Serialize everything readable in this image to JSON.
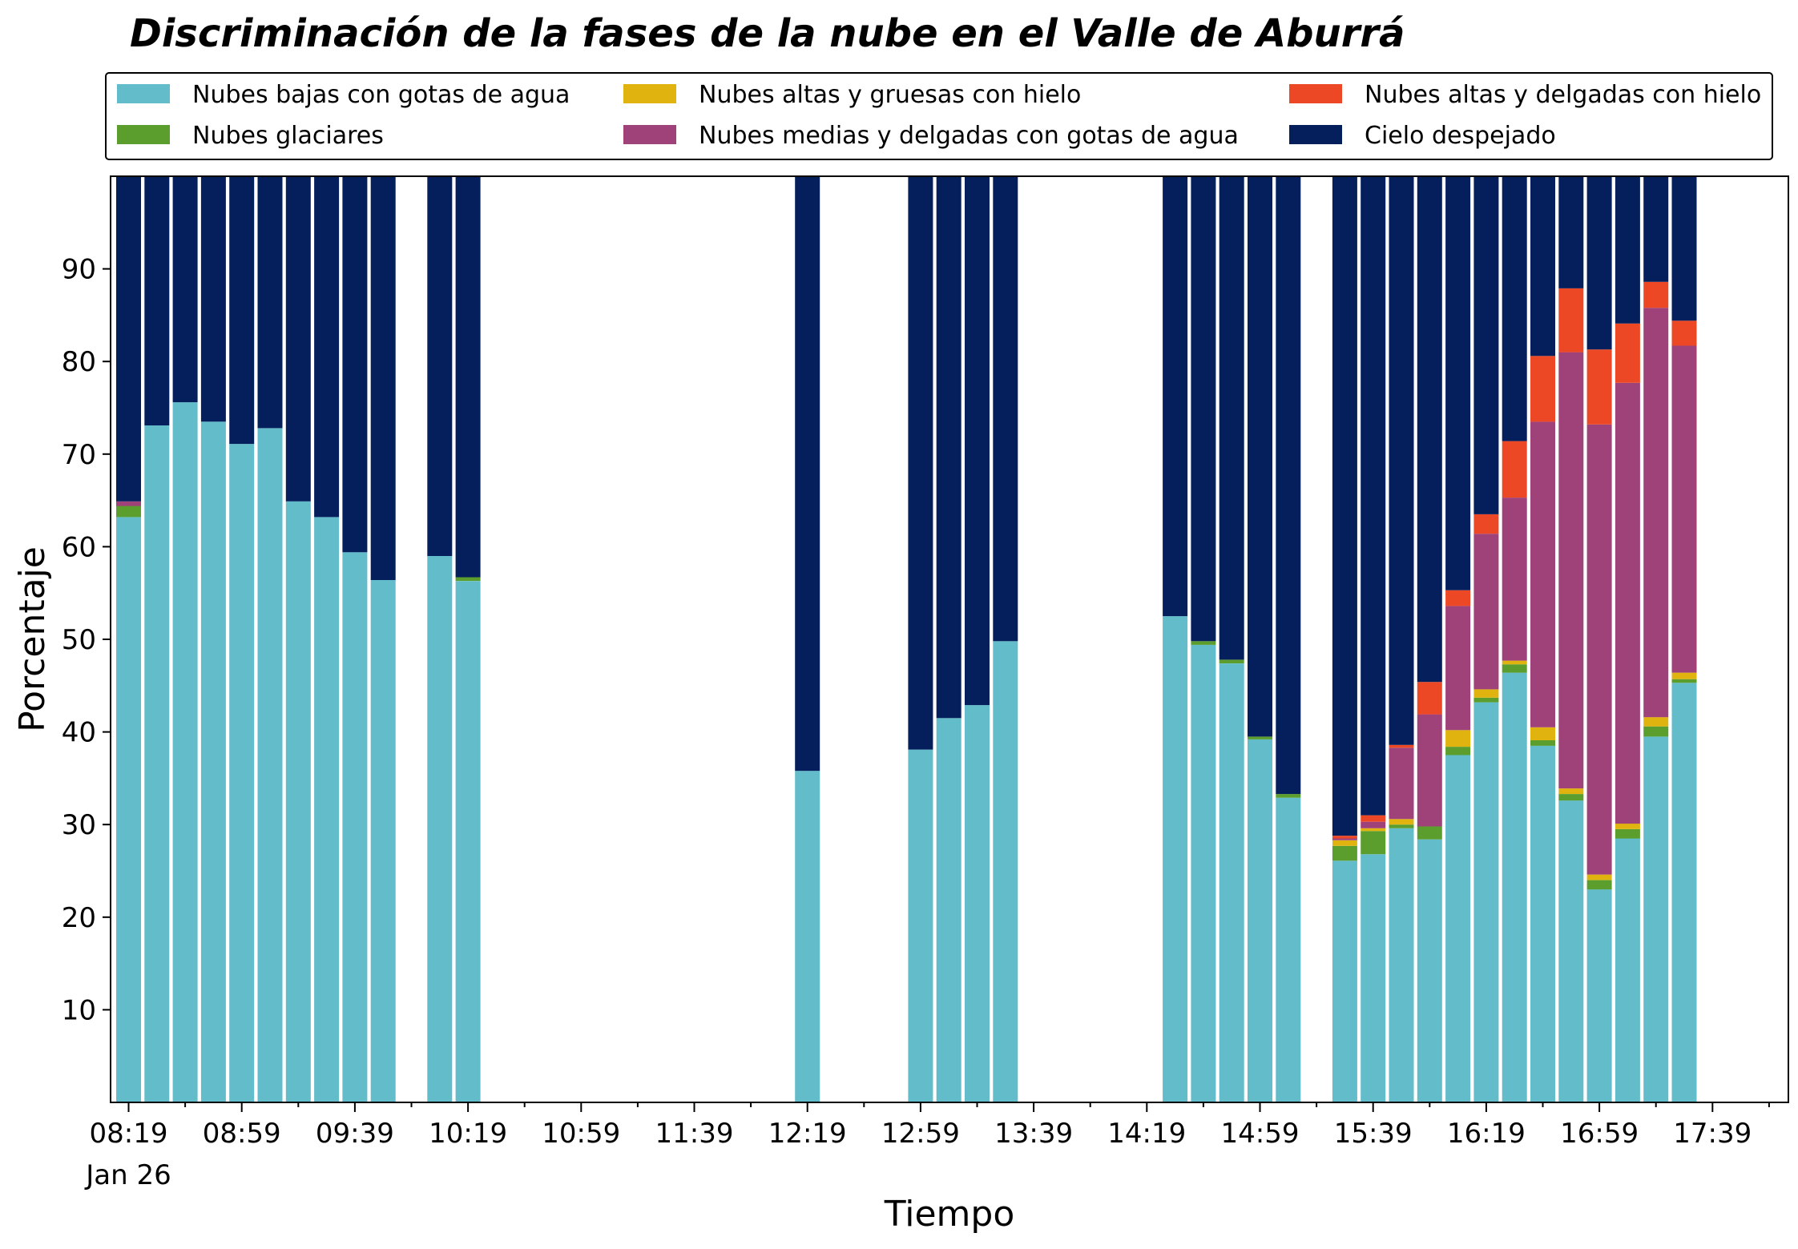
{
  "chart_data": {
    "type": "bar",
    "stacked": true,
    "title": "Discriminación de la fases de la nube en el Valle de Aburrá",
    "xlabel": "Tiempo",
    "ylabel": "Porcentaje",
    "ylim": [
      0,
      100
    ],
    "y_ticks": [
      10,
      20,
      30,
      40,
      50,
      60,
      70,
      80,
      90
    ],
    "x_tick_labels": [
      "08:19",
      "08:59",
      "09:39",
      "10:19",
      "10:59",
      "11:39",
      "12:19",
      "12:59",
      "13:39",
      "14:19",
      "14:59",
      "15:39",
      "16:19",
      "16:59",
      "17:39"
    ],
    "x_date_label": "Jan 26",
    "interval_minutes": 10,
    "start_time": "08:19",
    "legend_position": "top",
    "grid": false,
    "series": [
      {
        "name": "Nubes bajas con gotas de agua",
        "color": "#63BCC9"
      },
      {
        "name": "Nubes glaciares",
        "color": "#5C9E2E"
      },
      {
        "name": "Nubes altas y gruesas con hielo",
        "color": "#E1B30F"
      },
      {
        "name": "Nubes medias y delgadas con gotas de agua",
        "color": "#A0427A"
      },
      {
        "name": "Nubes altas y delgadas con hielo",
        "color": "#EC4826"
      },
      {
        "name": "Cielo despejado",
        "color": "#051F5C"
      }
    ],
    "bars": [
      {
        "time": "08:19",
        "values": [
          63.2,
          1.2,
          0,
          0.5,
          0,
          35.1
        ]
      },
      {
        "time": "08:29",
        "values": [
          73.1,
          0,
          0,
          0,
          0,
          26.9
        ]
      },
      {
        "time": "08:39",
        "values": [
          75.6,
          0,
          0,
          0,
          0,
          24.4
        ]
      },
      {
        "time": "08:49",
        "values": [
          73.5,
          0,
          0,
          0,
          0,
          26.5
        ]
      },
      {
        "time": "08:59",
        "values": [
          71.1,
          0,
          0,
          0,
          0,
          28.9
        ]
      },
      {
        "time": "09:09",
        "values": [
          72.8,
          0,
          0,
          0,
          0,
          27.2
        ]
      },
      {
        "time": "09:19",
        "values": [
          64.9,
          0,
          0,
          0,
          0,
          35.1
        ]
      },
      {
        "time": "09:29",
        "values": [
          63.2,
          0,
          0,
          0,
          0,
          36.8
        ]
      },
      {
        "time": "09:39",
        "values": [
          59.4,
          0,
          0,
          0,
          0,
          40.6
        ]
      },
      {
        "time": "09:49",
        "values": [
          56.4,
          0,
          0,
          0,
          0,
          43.6
        ]
      },
      {
        "time": "10:09",
        "values": [
          59.0,
          0,
          0,
          0,
          0,
          41.0
        ]
      },
      {
        "time": "10:19",
        "values": [
          56.3,
          0.4,
          0,
          0,
          0,
          43.3
        ]
      },
      {
        "time": "12:19",
        "values": [
          35.8,
          0,
          0,
          0,
          0,
          64.2
        ]
      },
      {
        "time": "12:59",
        "values": [
          38.1,
          0,
          0,
          0,
          0,
          61.9
        ]
      },
      {
        "time": "13:09",
        "values": [
          41.5,
          0,
          0,
          0,
          0,
          58.5
        ]
      },
      {
        "time": "13:19",
        "values": [
          42.9,
          0,
          0,
          0,
          0,
          57.1
        ]
      },
      {
        "time": "13:29",
        "values": [
          49.8,
          0,
          0,
          0,
          0,
          50.2
        ]
      },
      {
        "time": "14:29",
        "values": [
          52.5,
          0,
          0,
          0,
          0,
          47.5
        ]
      },
      {
        "time": "14:39",
        "values": [
          49.4,
          0.4,
          0,
          0,
          0,
          50.2
        ]
      },
      {
        "time": "14:49",
        "values": [
          47.4,
          0.4,
          0,
          0,
          0,
          52.2
        ]
      },
      {
        "time": "14:59",
        "values": [
          39.2,
          0.3,
          0,
          0,
          0,
          60.5
        ]
      },
      {
        "time": "15:09",
        "values": [
          32.9,
          0.4,
          0,
          0,
          0,
          66.7
        ]
      },
      {
        "time": "15:29",
        "values": [
          26.1,
          1.6,
          0.6,
          0.2,
          0.3,
          71.2
        ]
      },
      {
        "time": "15:39",
        "values": [
          26.8,
          2.5,
          0.3,
          0.7,
          0.7,
          69.0
        ]
      },
      {
        "time": "15:49",
        "values": [
          29.6,
          0.4,
          0.6,
          7.7,
          0.3,
          61.4
        ]
      },
      {
        "time": "15:59",
        "values": [
          28.4,
          1.4,
          0,
          12.1,
          3.5,
          54.6
        ]
      },
      {
        "time": "16:09",
        "values": [
          37.5,
          0.9,
          1.8,
          13.4,
          1.7,
          44.7
        ]
      },
      {
        "time": "16:19",
        "values": [
          43.2,
          0.5,
          0.9,
          16.8,
          2.1,
          36.5
        ]
      },
      {
        "time": "16:29",
        "values": [
          46.4,
          0.9,
          0.4,
          17.6,
          6.1,
          28.6
        ]
      },
      {
        "time": "16:39",
        "values": [
          38.5,
          0.6,
          1.4,
          33.0,
          7.1,
          19.4
        ]
      },
      {
        "time": "16:49",
        "values": [
          32.6,
          0.7,
          0.6,
          47.1,
          6.9,
          12.1
        ]
      },
      {
        "time": "16:59",
        "values": [
          23.0,
          1.0,
          0.6,
          48.6,
          8.1,
          18.7
        ]
      },
      {
        "time": "17:09",
        "values": [
          28.5,
          1.0,
          0.6,
          47.6,
          6.4,
          15.9
        ]
      },
      {
        "time": "17:19",
        "values": [
          39.5,
          1.1,
          1.0,
          44.2,
          2.8,
          11.4
        ]
      },
      {
        "time": "17:29",
        "values": [
          45.3,
          0.4,
          0.7,
          35.3,
          2.7,
          15.6
        ]
      }
    ]
  }
}
